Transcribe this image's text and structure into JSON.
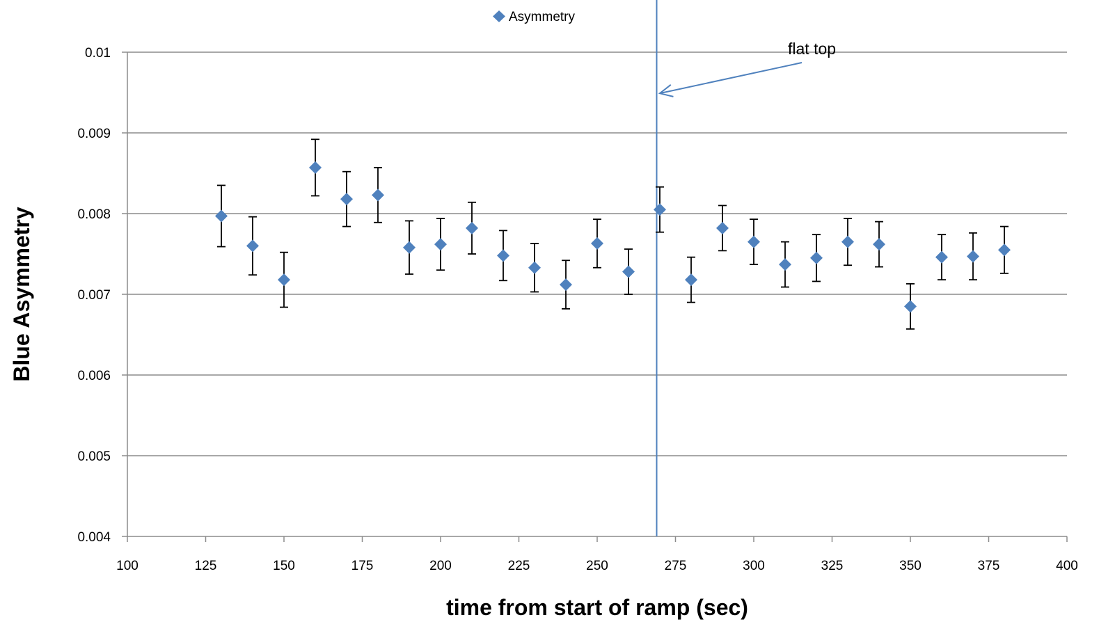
{
  "chart_data": {
    "type": "scatter",
    "title": "",
    "xlabel": "time from start of ramp (sec)",
    "ylabel": "Blue Asymmetry",
    "xlim": [
      100,
      400
    ],
    "ylim": [
      0.004,
      0.01
    ],
    "x_ticks": [
      "100",
      "125",
      "150",
      "175",
      "200",
      "225",
      "250",
      "275",
      "300",
      "325",
      "350",
      "375",
      "400"
    ],
    "y_ticks": [
      "0.004",
      "0.005",
      "0.006",
      "0.007",
      "0.008",
      "0.009",
      "0.01"
    ],
    "grid": "horizontal",
    "legend": {
      "position": "top-center",
      "entries": [
        "Asymmetry"
      ]
    },
    "series": [
      {
        "name": "Asymmetry",
        "marker": "diamond",
        "color": "#4f81bd",
        "points": [
          {
            "x": 130,
            "y": 0.00797,
            "err": 0.00038
          },
          {
            "x": 140,
            "y": 0.0076,
            "err": 0.00036
          },
          {
            "x": 150,
            "y": 0.00718,
            "err": 0.00034
          },
          {
            "x": 160,
            "y": 0.00857,
            "err": 0.00035
          },
          {
            "x": 170,
            "y": 0.00818,
            "err": 0.00034
          },
          {
            "x": 180,
            "y": 0.00823,
            "err": 0.00034
          },
          {
            "x": 190,
            "y": 0.00758,
            "err": 0.00033
          },
          {
            "x": 200,
            "y": 0.00762,
            "err": 0.00032
          },
          {
            "x": 210,
            "y": 0.00782,
            "err": 0.00032
          },
          {
            "x": 220,
            "y": 0.00748,
            "err": 0.00031
          },
          {
            "x": 230,
            "y": 0.00733,
            "err": 0.0003
          },
          {
            "x": 240,
            "y": 0.00712,
            "err": 0.0003
          },
          {
            "x": 250,
            "y": 0.00763,
            "err": 0.0003
          },
          {
            "x": 260,
            "y": 0.00728,
            "err": 0.00028
          },
          {
            "x": 270,
            "y": 0.00805,
            "err": 0.00028
          },
          {
            "x": 280,
            "y": 0.00718,
            "err": 0.00028
          },
          {
            "x": 290,
            "y": 0.00782,
            "err": 0.00028
          },
          {
            "x": 300,
            "y": 0.00765,
            "err": 0.00028
          },
          {
            "x": 310,
            "y": 0.00737,
            "err": 0.00028
          },
          {
            "x": 320,
            "y": 0.00745,
            "err": 0.00029
          },
          {
            "x": 330,
            "y": 0.00765,
            "err": 0.00029
          },
          {
            "x": 340,
            "y": 0.00762,
            "err": 0.00028
          },
          {
            "x": 350,
            "y": 0.00685,
            "err": 0.00028
          },
          {
            "x": 360,
            "y": 0.00746,
            "err": 0.00028
          },
          {
            "x": 370,
            "y": 0.00747,
            "err": 0.00029
          },
          {
            "x": 380,
            "y": 0.00755,
            "err": 0.00029
          }
        ]
      }
    ],
    "reference_line": {
      "x": 269,
      "color": "#4f81bd"
    },
    "annotations": [
      {
        "text": "flat top",
        "arrow_to": {
          "x": 270,
          "y": 0.00949
        }
      }
    ]
  }
}
